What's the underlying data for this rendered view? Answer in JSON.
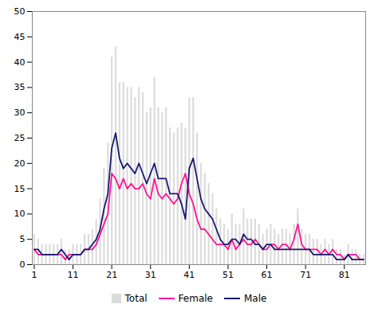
{
  "chart_data": {
    "type": "bar",
    "x": [
      1,
      2,
      3,
      4,
      5,
      6,
      7,
      8,
      9,
      10,
      11,
      12,
      13,
      14,
      15,
      16,
      17,
      18,
      19,
      20,
      21,
      22,
      23,
      24,
      25,
      26,
      27,
      28,
      29,
      30,
      31,
      32,
      33,
      34,
      35,
      36,
      37,
      38,
      39,
      40,
      41,
      42,
      43,
      44,
      45,
      46,
      47,
      48,
      49,
      50,
      51,
      52,
      53,
      54,
      55,
      56,
      57,
      58,
      59,
      60,
      61,
      62,
      63,
      64,
      65,
      66,
      67,
      68,
      69,
      70,
      71,
      72,
      73,
      74,
      75,
      76,
      77,
      78,
      79,
      80,
      81,
      82,
      83,
      84,
      85,
      86
    ],
    "series": [
      {
        "name": "Total",
        "type": "bar",
        "color": "#DCDCDC",
        "values": [
          6,
          5,
          4,
          4,
          4,
          4,
          4,
          5,
          3,
          3,
          4,
          4,
          4,
          6,
          6,
          7,
          9,
          13,
          19,
          24,
          41,
          43,
          36,
          36,
          35,
          35,
          33,
          35,
          34,
          30,
          31,
          37,
          31,
          30,
          31,
          27,
          26,
          27,
          28,
          27,
          33,
          33,
          26,
          20,
          18,
          16,
          14,
          11,
          9,
          8,
          7,
          10,
          8,
          8,
          11,
          9,
          9,
          9,
          8,
          6,
          7,
          8,
          7,
          6,
          7,
          7,
          6,
          8,
          11,
          7,
          6,
          6,
          5,
          5,
          4,
          5,
          4,
          5,
          3,
          3,
          2,
          4,
          3,
          3,
          2,
          2
        ]
      },
      {
        "name": "Female",
        "type": "line",
        "color": "#FF1493",
        "values": [
          3,
          2,
          2,
          2,
          2,
          2,
          2,
          2,
          1,
          2,
          2,
          2,
          2,
          3,
          3,
          3,
          4,
          6,
          8,
          10,
          18,
          17,
          15,
          17,
          15,
          16,
          15,
          15,
          16,
          14,
          13,
          17,
          14,
          13,
          14,
          13,
          12,
          13,
          16,
          18,
          14,
          12,
          9,
          7,
          7,
          6,
          5,
          4,
          4,
          4,
          3,
          5,
          3,
          4,
          5,
          4,
          4,
          5,
          4,
          3,
          3,
          4,
          4,
          3,
          4,
          4,
          3,
          5,
          8,
          4,
          3,
          3,
          3,
          3,
          2,
          3,
          2,
          3,
          2,
          2,
          1,
          2,
          2,
          2,
          1,
          1
        ]
      },
      {
        "name": "Male",
        "type": "line",
        "color": "#191970",
        "values": [
          3,
          3,
          2,
          2,
          2,
          2,
          2,
          3,
          2,
          1,
          2,
          2,
          2,
          3,
          3,
          4,
          5,
          7,
          11,
          14,
          23,
          26,
          21,
          19,
          20,
          19,
          18,
          20,
          18,
          16,
          18,
          20,
          17,
          17,
          17,
          14,
          14,
          14,
          12,
          9,
          19,
          21,
          17,
          13,
          11,
          10,
          9,
          7,
          5,
          4,
          4,
          5,
          5,
          4,
          6,
          5,
          5,
          4,
          4,
          3,
          4,
          4,
          3,
          3,
          3,
          3,
          3,
          3,
          3,
          3,
          3,
          3,
          2,
          2,
          2,
          2,
          2,
          2,
          1,
          1,
          1,
          2,
          1,
          1,
          1,
          1
        ]
      }
    ],
    "xlim": [
      0.5,
      86.5
    ],
    "xticks": [
      1,
      11,
      21,
      31,
      41,
      51,
      61,
      71,
      81
    ],
    "ylim": [
      0,
      50
    ],
    "yticks": [
      0,
      5,
      10,
      15,
      20,
      25,
      30,
      35,
      40,
      45,
      50
    ],
    "grid": false,
    "legend": "bottom"
  }
}
